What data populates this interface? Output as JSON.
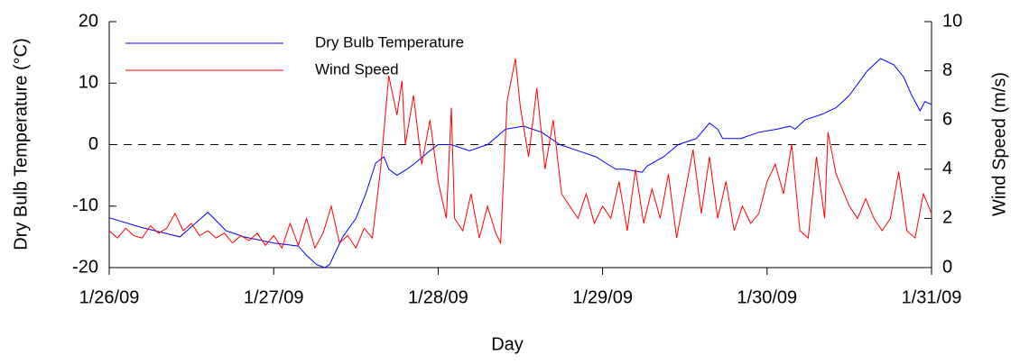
{
  "chart_data": {
    "type": "line",
    "x_label": "Day",
    "y_label": "Dry Bulb Temperature (°C)",
    "y2_label": "Wind Speed (m/s)",
    "xlim": [
      0,
      5
    ],
    "xticks": [
      {
        "value": 0,
        "label": "1/26/09"
      },
      {
        "value": 1,
        "label": "1/27/09"
      },
      {
        "value": 2,
        "label": "1/28/09"
      },
      {
        "value": 3,
        "label": "1/29/09"
      },
      {
        "value": 4,
        "label": "1/30/09"
      },
      {
        "value": 5,
        "label": "1/31/09"
      }
    ],
    "ylim": [
      -20,
      20
    ],
    "yticks": [
      -20,
      -10,
      0,
      10,
      20
    ],
    "y2lim": [
      0,
      10
    ],
    "y2ticks": [
      0,
      2,
      4,
      6,
      8,
      10
    ],
    "zero_line": true,
    "legend": "upper left",
    "series": [
      {
        "name": "Dry Bulb Temperature",
        "color": "#0000ff",
        "axis": "y",
        "x": [
          0,
          0.2,
          0.43,
          0.6,
          0.71,
          0.82,
          1.0,
          1.15,
          1.2,
          1.26,
          1.31,
          1.34,
          1.42,
          1.5,
          1.56,
          1.62,
          1.67,
          1.7,
          1.75,
          1.81,
          1.86,
          1.95,
          2.0,
          2.08,
          2.19,
          2.3,
          2.41,
          2.52,
          2.63,
          2.74,
          2.85,
          2.96,
          3.02,
          3.08,
          3.13,
          3.24,
          3.27,
          3.37,
          3.46,
          3.57,
          3.65,
          3.7,
          3.73,
          3.84,
          3.95,
          4.06,
          4.14,
          4.17,
          4.23,
          4.34,
          4.42,
          4.5,
          4.61,
          4.69,
          4.77,
          4.83,
          4.88,
          4.93,
          4.96,
          5.0
        ],
        "values": [
          -11.9,
          -13.5,
          -15,
          -11,
          -14,
          -15,
          -16,
          -16.5,
          -18,
          -19.5,
          -20,
          -19.5,
          -15,
          -12,
          -8,
          -3,
          -2,
          -4,
          -5,
          -4,
          -3,
          -1,
          0,
          0,
          -1,
          0,
          2.5,
          3,
          2,
          0,
          -1,
          -2,
          -3,
          -4,
          -4,
          -4.5,
          -3.5,
          -2,
          0,
          1,
          3.5,
          2.5,
          1,
          1,
          2,
          2.5,
          3,
          2.5,
          4,
          5,
          6,
          8,
          12,
          14,
          13,
          11,
          8,
          5.5,
          7,
          6.5
        ]
      },
      {
        "name": "Wind Speed",
        "color": "#ff0000",
        "axis": "y2",
        "x": [
          0,
          0.05,
          0.1,
          0.15,
          0.2,
          0.25,
          0.3,
          0.35,
          0.4,
          0.45,
          0.5,
          0.55,
          0.6,
          0.65,
          0.7,
          0.75,
          0.8,
          0.85,
          0.9,
          0.95,
          1.0,
          1.05,
          1.1,
          1.15,
          1.2,
          1.25,
          1.3,
          1.35,
          1.4,
          1.45,
          1.5,
          1.55,
          1.6,
          1.65,
          1.7,
          1.75,
          1.78,
          1.8,
          1.85,
          1.9,
          1.95,
          2.0,
          2.05,
          2.08,
          2.1,
          2.15,
          2.2,
          2.25,
          2.3,
          2.35,
          2.38,
          2.42,
          2.47,
          2.5,
          2.55,
          2.6,
          2.65,
          2.7,
          2.75,
          2.8,
          2.85,
          2.9,
          2.95,
          3.0,
          3.05,
          3.1,
          3.15,
          3.2,
          3.25,
          3.3,
          3.35,
          3.4,
          3.45,
          3.5,
          3.55,
          3.6,
          3.65,
          3.7,
          3.75,
          3.8,
          3.85,
          3.9,
          3.95,
          4.0,
          4.05,
          4.1,
          4.15,
          4.2,
          4.25,
          4.3,
          4.35,
          4.37,
          4.42,
          4.5,
          4.55,
          4.6,
          4.65,
          4.7,
          4.75,
          4.8,
          4.85,
          4.9,
          4.95,
          5.0
        ],
        "values": [
          1.5,
          1.2,
          1.6,
          1.3,
          1.2,
          1.7,
          1.4,
          1.6,
          2.2,
          1.5,
          1.8,
          1.3,
          1.5,
          1.2,
          1.4,
          1.0,
          1.3,
          1.1,
          1.4,
          0.9,
          1.3,
          0.8,
          1.8,
          0.9,
          2.0,
          0.8,
          1.4,
          2.5,
          1.0,
          1.3,
          0.8,
          1.6,
          1.2,
          4.0,
          7.8,
          6.2,
          7.6,
          5.0,
          7.0,
          4.2,
          6.0,
          3.5,
          2.0,
          6.5,
          2.0,
          1.5,
          3.0,
          1.2,
          2.5,
          1.4,
          1.0,
          6.8,
          8.5,
          6.5,
          4.5,
          7.3,
          4.0,
          6.0,
          3.0,
          2.5,
          2.0,
          3.0,
          1.8,
          2.5,
          2.0,
          3.5,
          1.5,
          4.0,
          1.8,
          3.2,
          2.0,
          3.8,
          1.2,
          3.0,
          4.8,
          2.2,
          4.5,
          2.0,
          3.5,
          1.5,
          2.5,
          1.8,
          2.2,
          3.5,
          4.2,
          3.0,
          5.0,
          1.5,
          1.2,
          4.5,
          2.0,
          5.5,
          3.8,
          2.5,
          2.0,
          2.8,
          2.0,
          1.5,
          2.0,
          3.9,
          1.5,
          1.2,
          3.0,
          2.2
        ]
      }
    ]
  }
}
